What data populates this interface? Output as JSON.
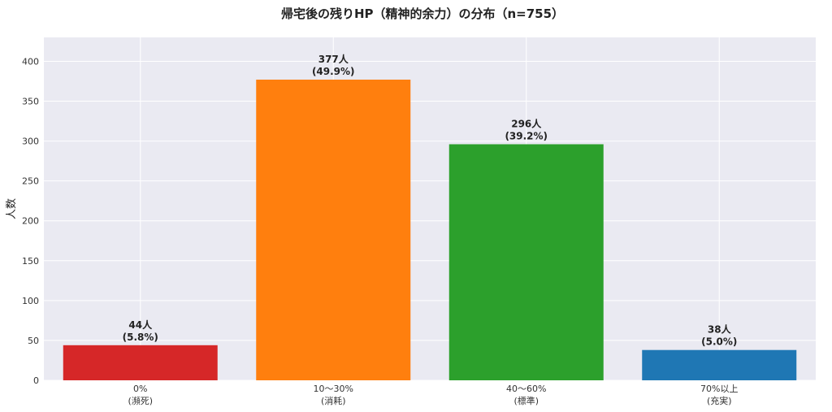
{
  "chart_data": {
    "type": "bar",
    "title": "帰宅後の残りHP（精神的余力）の分布（n=755）",
    "xlabel": "",
    "ylabel": "人数",
    "ylim": [
      0,
      430
    ],
    "yticks": [
      0,
      50,
      100,
      150,
      200,
      250,
      300,
      350,
      400
    ],
    "grid": true,
    "categories": [
      [
        "0%",
        "(瀕死)"
      ],
      [
        "10～30%",
        "(消耗)"
      ],
      [
        "40～60%",
        "(標準)"
      ],
      [
        "70%以上",
        "(充実)"
      ]
    ],
    "values": [
      44,
      377,
      296,
      38
    ],
    "data_labels": [
      [
        "44人",
        "(5.8%)"
      ],
      [
        "377人",
        "(49.9%)"
      ],
      [
        "296人",
        "(39.2%)"
      ],
      [
        "38人",
        "(5.0%)"
      ]
    ],
    "colors": [
      "#d62728",
      "#ff7f0e",
      "#2ca02c",
      "#1f77b4"
    ],
    "background": "#eaeaf2"
  }
}
